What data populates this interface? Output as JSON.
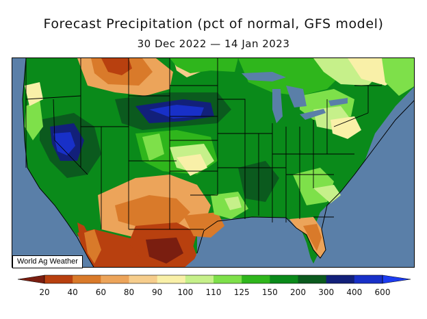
{
  "header": {
    "title": "Forecast Precipitation (pct of normal, GFS model)",
    "subtitle": "30 Dec 2022 — 14 Jan 2023"
  },
  "map": {
    "credit": "World Ag Weather",
    "colors": {
      "ocean": "#5a7fa8",
      "lakes": "#5a7fa8",
      "state_borders": "#000000"
    }
  },
  "legend": {
    "labels": [
      "20",
      "40",
      "60",
      "80",
      "90",
      "100",
      "110",
      "125",
      "150",
      "200",
      "300",
      "400",
      "600"
    ],
    "colors": [
      "#7a1e10",
      "#b8400f",
      "#d97a2a",
      "#eca45a",
      "#f6cd8c",
      "#f9f0a8",
      "#c6f08a",
      "#7ee04a",
      "#2fb61c",
      "#0a8a1a",
      "#0b5a1e",
      "#12207a",
      "#1830c8"
    ],
    "arrow_left_color": "#7a1e10",
    "arrow_right_color": "#1c3cf0"
  }
}
